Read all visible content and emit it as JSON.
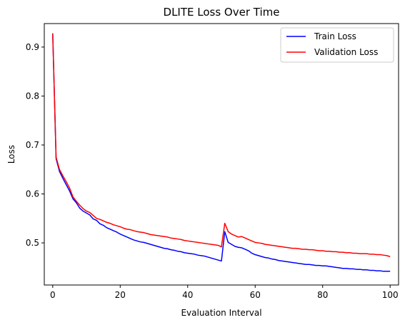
{
  "chart_data": {
    "type": "line",
    "title": "DLITE Loss Over Time",
    "xlabel": "Evaluation Interval",
    "ylabel": "Loss",
    "xlim": [
      -2.5,
      102.5
    ],
    "ylim": [
      0.414,
      0.948
    ],
    "xticks": [
      0,
      20,
      40,
      60,
      80,
      100
    ],
    "yticks": [
      0.5,
      0.6,
      0.7,
      0.8,
      0.9
    ],
    "ytick_labels": [
      "0.5",
      "0.6",
      "0.7",
      "0.8",
      "0.9"
    ],
    "grid": false,
    "legend_position": "top-right",
    "x": [
      0,
      1,
      2,
      3,
      4,
      5,
      6,
      7,
      8,
      9,
      10,
      11,
      12,
      13,
      14,
      15,
      16,
      17,
      18,
      19,
      20,
      21,
      22,
      23,
      24,
      25,
      26,
      27,
      28,
      29,
      30,
      31,
      32,
      33,
      34,
      35,
      36,
      37,
      38,
      39,
      40,
      41,
      42,
      43,
      44,
      45,
      46,
      47,
      48,
      49,
      50,
      51,
      52,
      53,
      54,
      55,
      56,
      57,
      58,
      59,
      60,
      61,
      62,
      63,
      64,
      65,
      66,
      67,
      68,
      69,
      70,
      71,
      72,
      73,
      74,
      75,
      76,
      77,
      78,
      79,
      80,
      81,
      82,
      83,
      84,
      85,
      86,
      87,
      88,
      89,
      90,
      91,
      92,
      93,
      94,
      95,
      96,
      97,
      98,
      99,
      100
    ],
    "series": [
      {
        "name": "Train Loss",
        "color": "#0000ff",
        "values": [
          0.928,
          0.672,
          0.646,
          0.632,
          0.619,
          0.606,
          0.59,
          0.582,
          0.571,
          0.565,
          0.561,
          0.557,
          0.549,
          0.546,
          0.539,
          0.536,
          0.531,
          0.528,
          0.525,
          0.522,
          0.518,
          0.515,
          0.512,
          0.509,
          0.506,
          0.504,
          0.502,
          0.501,
          0.499,
          0.497,
          0.495,
          0.493,
          0.491,
          0.489,
          0.488,
          0.486,
          0.485,
          0.483,
          0.482,
          0.48,
          0.479,
          0.478,
          0.477,
          0.475,
          0.474,
          0.473,
          0.471,
          0.469,
          0.467,
          0.465,
          0.463,
          0.523,
          0.501,
          0.497,
          0.493,
          0.491,
          0.49,
          0.487,
          0.484,
          0.479,
          0.476,
          0.474,
          0.472,
          0.47,
          0.469,
          0.467,
          0.466,
          0.464,
          0.463,
          0.462,
          0.461,
          0.46,
          0.459,
          0.458,
          0.457,
          0.456,
          0.456,
          0.455,
          0.454,
          0.454,
          0.453,
          0.453,
          0.452,
          0.451,
          0.45,
          0.449,
          0.448,
          0.448,
          0.447,
          0.447,
          0.446,
          0.446,
          0.445,
          0.445,
          0.444,
          0.444,
          0.443,
          0.443,
          0.442,
          0.442,
          0.442
        ]
      },
      {
        "name": "Validation Loss",
        "color": "#ff0000",
        "values": [
          0.928,
          0.675,
          0.65,
          0.637,
          0.625,
          0.612,
          0.594,
          0.585,
          0.577,
          0.57,
          0.565,
          0.562,
          0.556,
          0.55,
          0.548,
          0.545,
          0.542,
          0.54,
          0.537,
          0.535,
          0.533,
          0.53,
          0.528,
          0.527,
          0.525,
          0.523,
          0.522,
          0.521,
          0.519,
          0.517,
          0.516,
          0.515,
          0.514,
          0.513,
          0.512,
          0.51,
          0.509,
          0.508,
          0.507,
          0.505,
          0.504,
          0.503,
          0.502,
          0.501,
          0.5,
          0.499,
          0.498,
          0.497,
          0.496,
          0.495,
          0.492,
          0.54,
          0.523,
          0.518,
          0.515,
          0.512,
          0.513,
          0.51,
          0.507,
          0.504,
          0.501,
          0.5,
          0.499,
          0.497,
          0.496,
          0.495,
          0.494,
          0.493,
          0.492,
          0.491,
          0.49,
          0.489,
          0.489,
          0.488,
          0.487,
          0.487,
          0.486,
          0.486,
          0.485,
          0.484,
          0.484,
          0.483,
          0.483,
          0.482,
          0.482,
          0.481,
          0.481,
          0.48,
          0.48,
          0.479,
          0.479,
          0.478,
          0.478,
          0.478,
          0.477,
          0.477,
          0.476,
          0.476,
          0.475,
          0.474,
          0.472
        ]
      }
    ]
  }
}
